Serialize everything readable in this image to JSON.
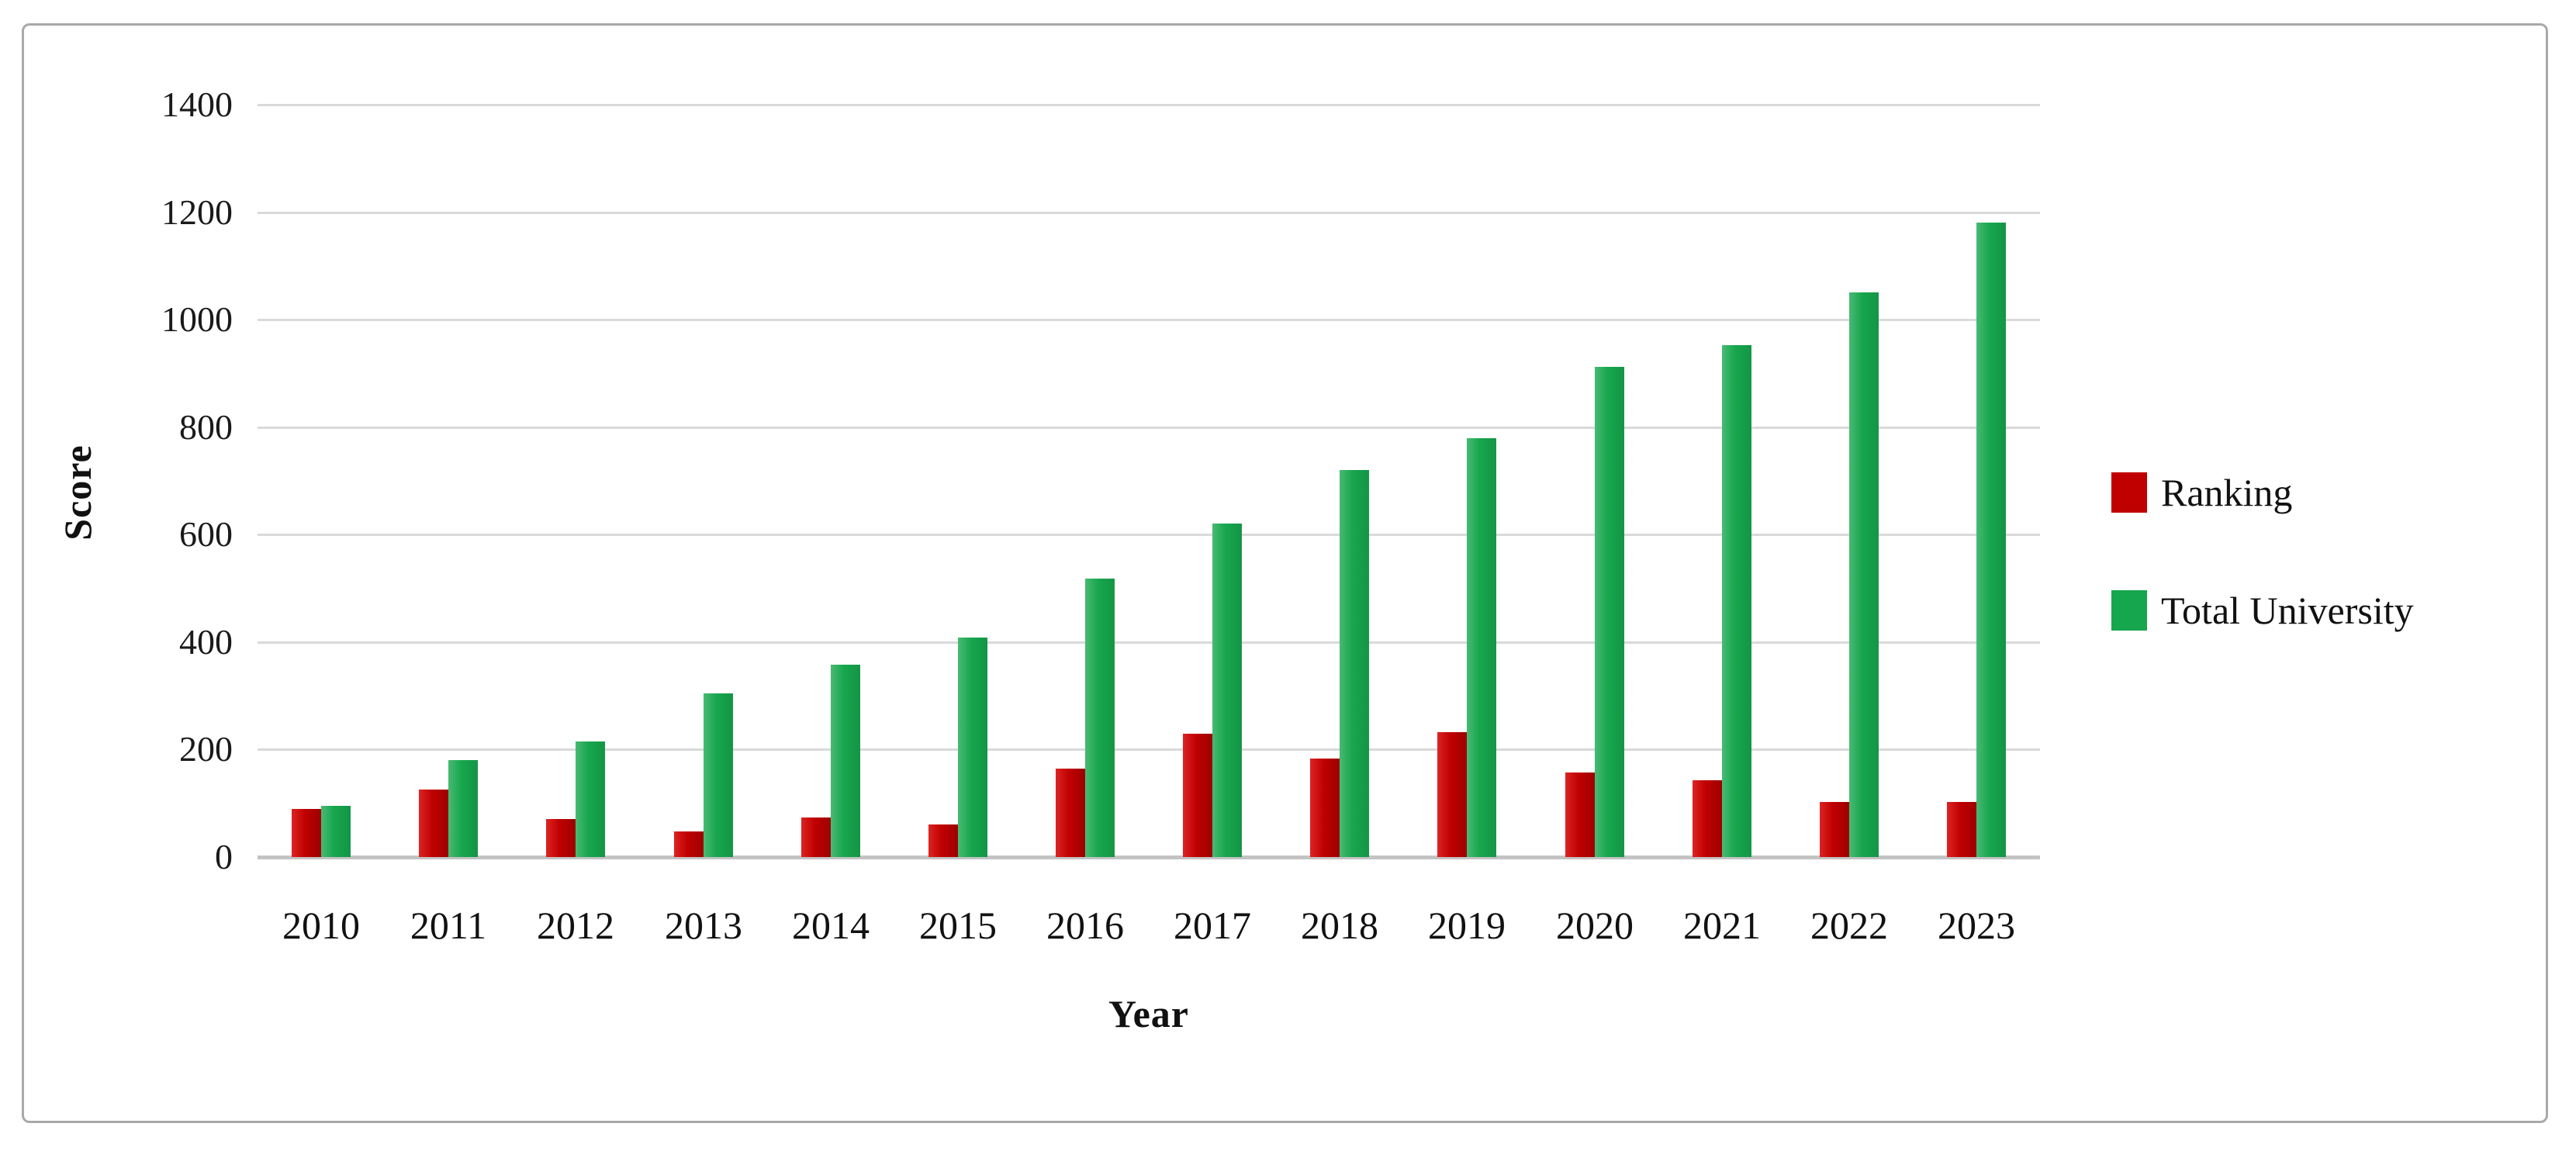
{
  "figure": {
    "background": "#ffffff",
    "border_color": "#a9a9a9"
  },
  "chart_data": {
    "type": "bar",
    "title": "",
    "xlabel": "Year",
    "ylabel": "Score",
    "categories": [
      "2010",
      "2011",
      "2012",
      "2013",
      "2014",
      "2015",
      "2016",
      "2017",
      "2018",
      "2019",
      "2020",
      "2021",
      "2022",
      "2023"
    ],
    "series": [
      {
        "name": "Ranking",
        "color": "#c00000",
        "values": [
          90,
          125,
          70,
          48,
          73,
          60,
          165,
          230,
          183,
          233,
          158,
          143,
          102,
          102
        ]
      },
      {
        "name": "Total University",
        "color": "#16a64d",
        "values": [
          95,
          180,
          215,
          305,
          358,
          408,
          518,
          620,
          720,
          780,
          912,
          952,
          1050,
          1180
        ]
      }
    ],
    "ylim": [
      0,
      1400
    ],
    "yticks": [
      0,
      200,
      400,
      600,
      800,
      1000,
      1200,
      1400
    ],
    "grid": true,
    "gridline_color": "#d9d9d9",
    "axis_line_color": "#c3c3c3",
    "legend_position": "right"
  }
}
